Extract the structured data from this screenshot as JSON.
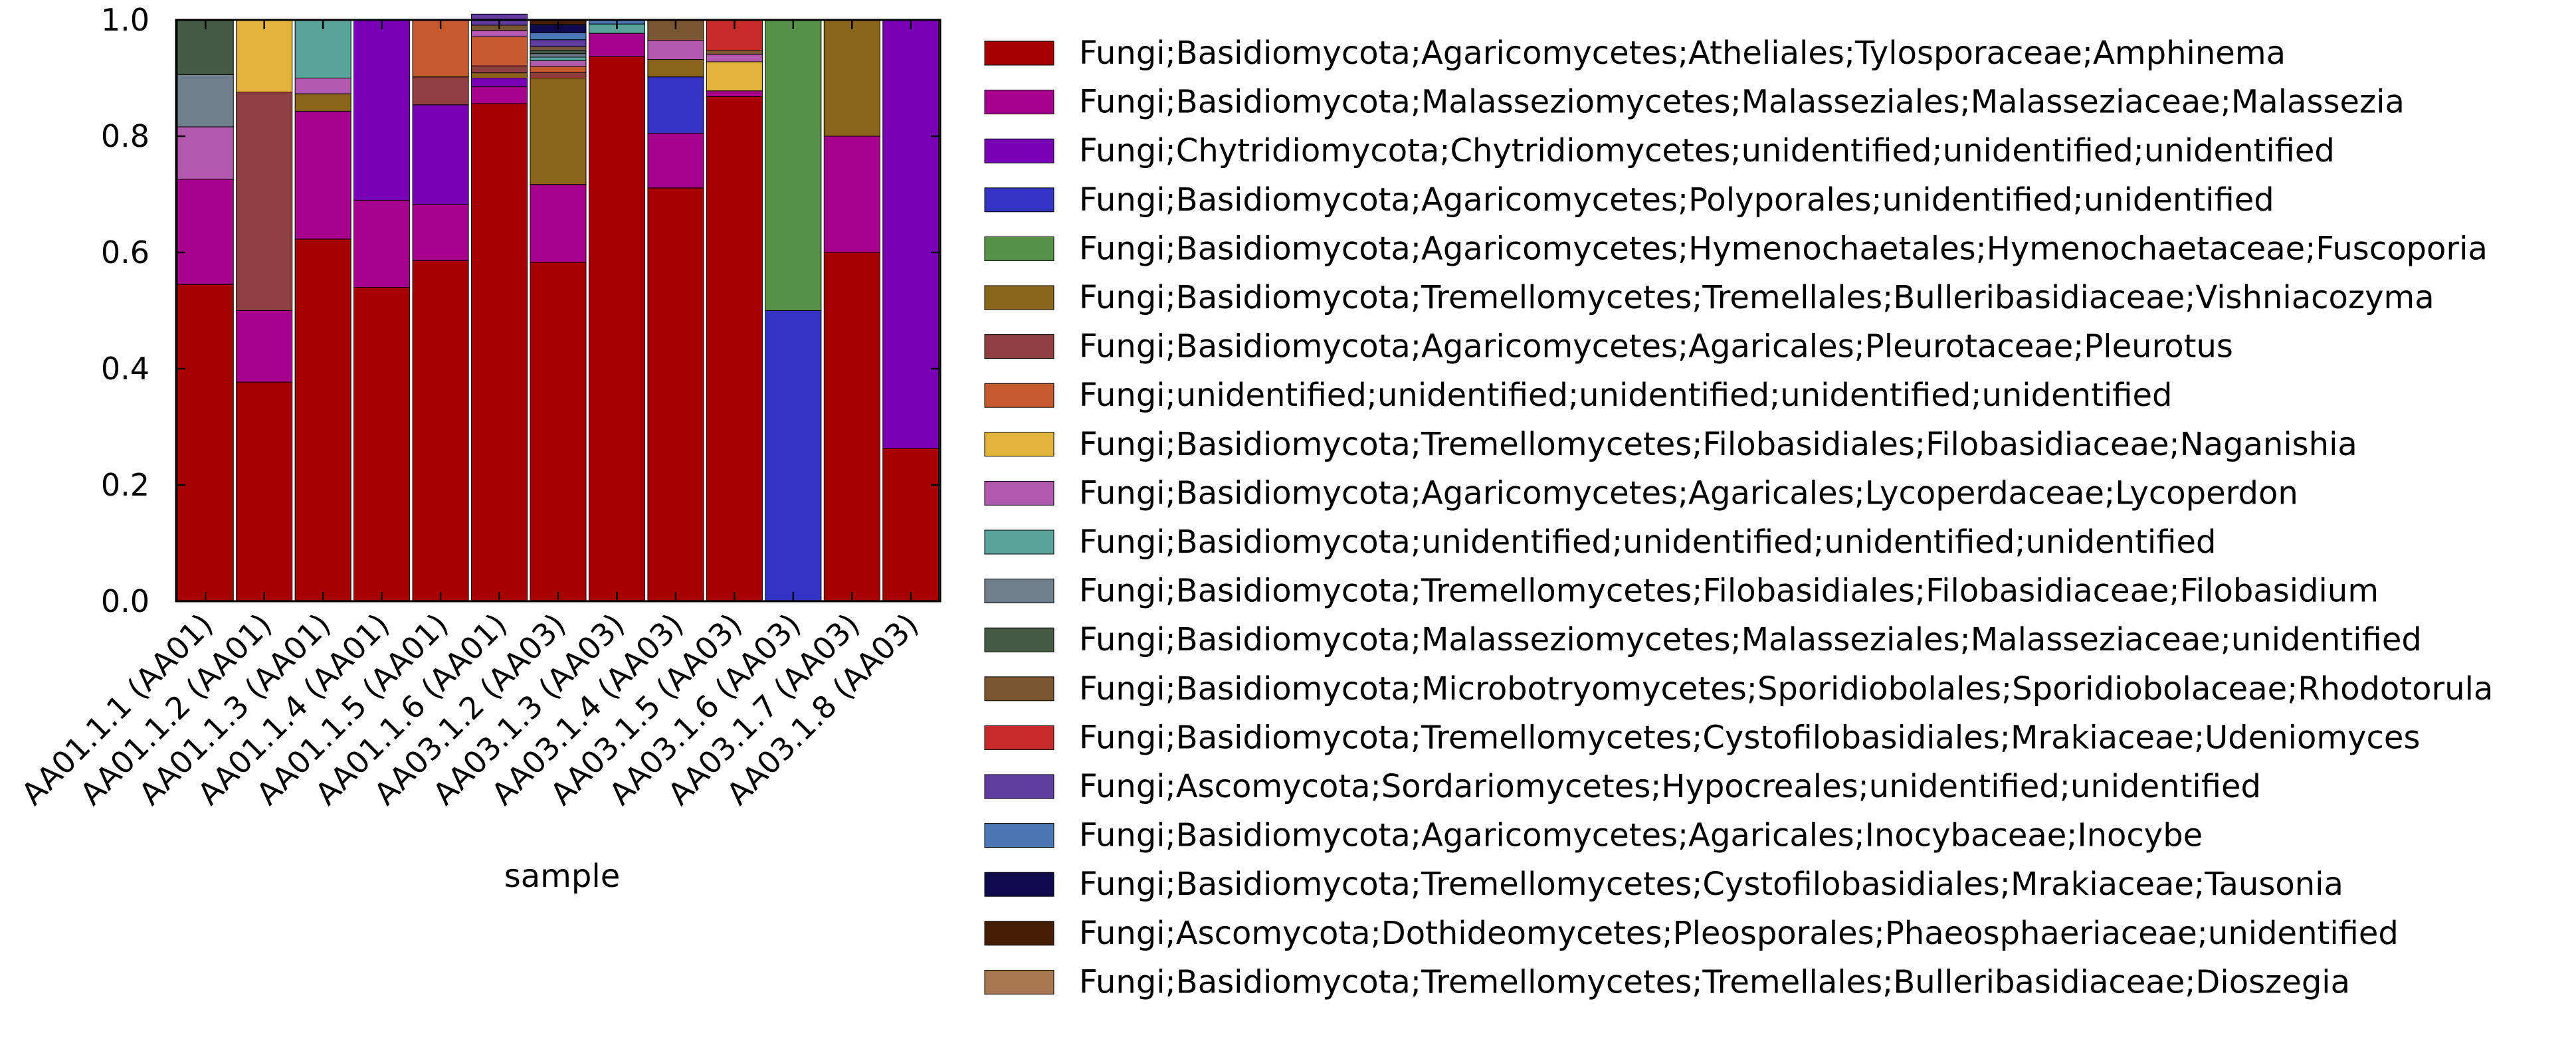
{
  "chart_data": {
    "type": "bar",
    "stacked": true,
    "xlabel": "sample",
    "ylabel": "",
    "ylim": [
      0,
      1
    ],
    "yticks": [
      "0.0",
      "0.2",
      "0.4",
      "0.6",
      "0.8",
      "1.0"
    ],
    "legend_position": "right",
    "categories": [
      "AA01.1.1 (AA01)",
      "AA01.1.2 (AA01)",
      "AA01.1.3 (AA01)",
      "AA01.1.4 (AA01)",
      "AA01.1.5 (AA01)",
      "AA01.1.6 (AA01)",
      "AA03.1.2 (AA03)",
      "AA03.1.3 (AA03)",
      "AA03.1.4 (AA03)",
      "AA03.1.5 (AA03)",
      "AA03.1.6 (AA03)",
      "AA03.1.7 (AA03)",
      "AA03.1.8 (AA03)"
    ],
    "series": [
      {
        "name": "Fungi;Basidiomycota;Agaricomycetes;Atheliales;Tylosporaceae;Amphinema",
        "color": "#a80000",
        "values": [
          0.545,
          0.377,
          0.623,
          0.54,
          0.586,
          0.856,
          0.583,
          0.937,
          0.711,
          0.868,
          0,
          0.6,
          0.263
        ]
      },
      {
        "name": "Fungi;Basidiomycota;Malasseziomycetes;Malasseziales;Malasseziaceae;Malassezia",
        "color": "#a8008c",
        "values": [
          0.181,
          0.123,
          0.22,
          0.15,
          0.097,
          0.029,
          0.134,
          0.04,
          0.094,
          0.01,
          0,
          0.2,
          0
        ]
      },
      {
        "name": "Fungi;Chytridiomycota;Chytridiomycetes;unidentified;unidentified;unidentified",
        "color": "#7a00b8",
        "values": [
          0,
          0,
          0,
          0.31,
          0.171,
          0.015,
          0,
          0,
          0,
          0,
          0,
          0,
          0.737
        ]
      },
      {
        "name": "Fungi;Basidiomycota;Agaricomycetes;Polyporales;unidentified;unidentified",
        "color": "#3333c4",
        "values": [
          0,
          0,
          0,
          0,
          0,
          0,
          0,
          0,
          0.097,
          0,
          0.5,
          0,
          0
        ]
      },
      {
        "name": "Fungi;Basidiomycota;Agaricomycetes;Hymenochaetales;Hymenochaetaceae;Fuscoporia",
        "color": "#569245",
        "values": [
          0,
          0,
          0,
          0,
          0,
          0,
          0,
          0,
          0,
          0,
          0.5,
          0,
          0
        ]
      },
      {
        "name": "Fungi;Basidiomycota;Tremellomycetes;Tremellales;Bulleribasidiaceae;Vishniacozyma",
        "color": "#8a6418",
        "values": [
          0,
          0,
          0.03,
          0,
          0,
          0.009,
          0.183,
          0,
          0.03,
          0,
          0,
          0.2,
          0
        ]
      },
      {
        "name": "Fungi;Basidiomycota;Agaricomycetes;Agaricales;Pleurotaceae;Pleurotus",
        "color": "#8f3f3f",
        "values": [
          0,
          0.376,
          0,
          0,
          0.048,
          0.012,
          0.01,
          0,
          0,
          0,
          0,
          0,
          0
        ]
      },
      {
        "name": "Fungi;unidentified;unidentified;unidentified;unidentified;unidentified",
        "color": "#c45a2e",
        "values": [
          0,
          0,
          0,
          0,
          0.097,
          0.05,
          0.01,
          0,
          0,
          0,
          0,
          0,
          0
        ]
      },
      {
        "name": "Fungi;Basidiomycota;Tremellomycetes;Filobasidiales;Filobasidiaceae;Naganishia",
        "color": "#e3b43c",
        "values": [
          0,
          0.124,
          0,
          0,
          0,
          0,
          0,
          0,
          0,
          0.05,
          0,
          0,
          0
        ]
      },
      {
        "name": "Fungi;Basidiomycota;Agaricomycetes;Agaricales;Lycoperdaceae;Lycoperdon",
        "color": "#b25aae",
        "values": [
          0.09,
          0,
          0.027,
          0,
          0,
          0.011,
          0.01,
          0,
          0.033,
          0.013,
          0,
          0,
          0
        ]
      },
      {
        "name": "Fungi;Basidiomycota;unidentified;unidentified;unidentified;unidentified",
        "color": "#5aa39a",
        "values": [
          0,
          0,
          0.1,
          0,
          0,
          0,
          0.006,
          0.016,
          0,
          0,
          0,
          0,
          0
        ]
      },
      {
        "name": "Fungi;Basidiomycota;Tremellomycetes;Filobasidiales;Filobasidiaceae;Filobasidium",
        "color": "#707f8d",
        "values": [
          0.09,
          0,
          0,
          0,
          0,
          0,
          0.006,
          0,
          0,
          0,
          0,
          0,
          0
        ]
      },
      {
        "name": "Fungi;Basidiomycota;Malasseziomycetes;Malasseziales;Malasseziaceae;unidentified",
        "color": "#445a44",
        "values": [
          0.094,
          0,
          0,
          0,
          0,
          0,
          0.006,
          0,
          0,
          0,
          0,
          0,
          0
        ]
      },
      {
        "name": "Fungi;Basidiomycota;Microbotryomycetes;Sporidiobolales;Sporidiobolaceae;Rhodotorula",
        "color": "#7a5730",
        "values": [
          0,
          0,
          0,
          0,
          0,
          0.009,
          0.006,
          0,
          0.035,
          0.007,
          0,
          0,
          0
        ]
      },
      {
        "name": "Fungi;Basidiomycota;Tremellomycetes;Cystofilobasidiales;Mrakiaceae;Udeniomyces",
        "color": "#c82a2a",
        "values": [
          0,
          0,
          0,
          0,
          0,
          0,
          0,
          0,
          0,
          0.052,
          0,
          0,
          0
        ]
      },
      {
        "name": "Fungi;Ascomycota;Sordariomycetes;Hypocreales;unidentified;unidentified",
        "color": "#603d9e",
        "values": [
          0,
          0,
          0,
          0,
          0,
          0.019,
          0.012,
          0,
          0,
          0,
          0,
          0,
          0
        ]
      },
      {
        "name": "Fungi;Basidiomycota;Agaricomycetes;Agaricales;Inocybaceae;Inocybe",
        "color": "#4a78b4",
        "values": [
          0,
          0,
          0,
          0,
          0,
          0,
          0.012,
          0.007,
          0,
          0,
          0,
          0,
          0
        ]
      },
      {
        "name": "Fungi;Basidiomycota;Tremellomycetes;Cystofilobasidiales;Mrakiaceae;Tausonia",
        "color": "#0e0a4c",
        "values": [
          0,
          0,
          0,
          0,
          0,
          0,
          0.014,
          0,
          0,
          0,
          0,
          0,
          0
        ]
      },
      {
        "name": "Fungi;Ascomycota;Dothideomycetes;Pleosporales;Phaeosphaeriaceae;unidentified",
        "color": "#461e06",
        "values": [
          0,
          0,
          0,
          0,
          0,
          0,
          0.008,
          0,
          0,
          0,
          0,
          0,
          0
        ]
      },
      {
        "name": "Fungi;Basidiomycota;Tremellomycetes;Tremellales;Bulleribasidiaceae;Dioszegia",
        "color": "#a8784e",
        "values": [
          0,
          0,
          0,
          0,
          0,
          0,
          0,
          0,
          0,
          0,
          0,
          0,
          0
        ]
      }
    ]
  }
}
